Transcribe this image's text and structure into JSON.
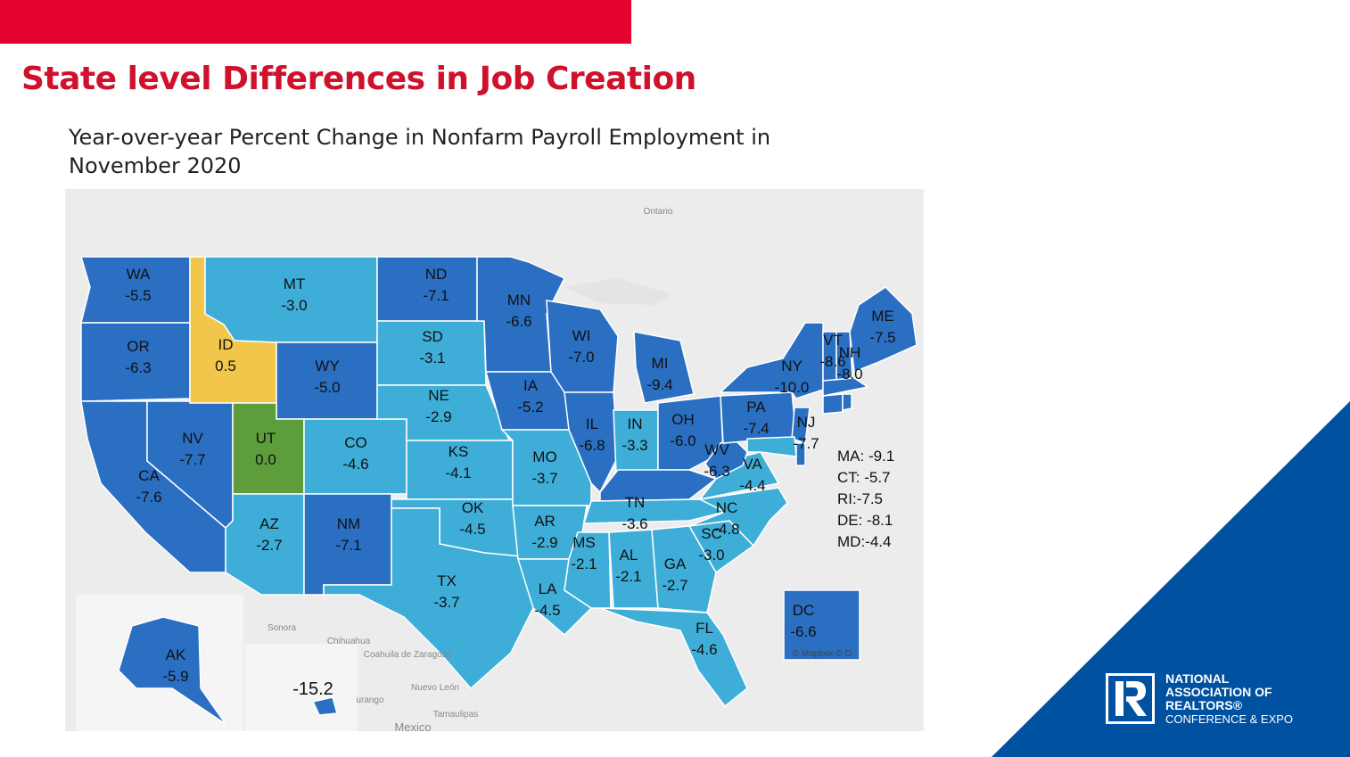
{
  "slide": {
    "title": "State level Differences in Job Creation",
    "subtitle": "Year-over-year Percent Change in Nonfarm Payroll Employment in November 2020"
  },
  "colors": {
    "accent_red": "#e4032e",
    "title_red": "#d0112b",
    "nar_blue": "#0051a0",
    "very_negative": "#2a6fc2",
    "moderately_negative": "#3eaed8",
    "slightly_positive": "#f2c64b",
    "zero": "#5e9d3b"
  },
  "map": {
    "states": [
      {
        "code": "WA",
        "value": "-5.5"
      },
      {
        "code": "OR",
        "value": "-6.3"
      },
      {
        "code": "CA",
        "value": "-7.6"
      },
      {
        "code": "NV",
        "value": "-7.7"
      },
      {
        "code": "ID",
        "value": "0.5"
      },
      {
        "code": "MT",
        "value": "-3.0"
      },
      {
        "code": "WY",
        "value": "-5.0"
      },
      {
        "code": "UT",
        "value": "0.0"
      },
      {
        "code": "CO",
        "value": "-4.6"
      },
      {
        "code": "AZ",
        "value": "-2.7"
      },
      {
        "code": "NM",
        "value": "-7.1"
      },
      {
        "code": "ND",
        "value": "-7.1"
      },
      {
        "code": "SD",
        "value": "-3.1"
      },
      {
        "code": "NE",
        "value": "-2.9"
      },
      {
        "code": "KS",
        "value": "-4.1"
      },
      {
        "code": "OK",
        "value": "-4.5"
      },
      {
        "code": "TX",
        "value": "-3.7"
      },
      {
        "code": "MN",
        "value": "-6.6"
      },
      {
        "code": "IA",
        "value": "-5.2"
      },
      {
        "code": "MO",
        "value": "-3.7"
      },
      {
        "code": "AR",
        "value": "-2.9"
      },
      {
        "code": "LA",
        "value": "-4.5"
      },
      {
        "code": "WI",
        "value": "-7.0"
      },
      {
        "code": "IL",
        "value": "-6.8"
      },
      {
        "code": "MI",
        "value": "-9.4"
      },
      {
        "code": "IN",
        "value": "-3.3"
      },
      {
        "code": "OH",
        "value": "-6.0"
      },
      {
        "code": "KY",
        "value": ""
      },
      {
        "code": "TN",
        "value": "-3.6"
      },
      {
        "code": "MS",
        "value": "-2.1"
      },
      {
        "code": "AL",
        "value": "-2.1"
      },
      {
        "code": "GA",
        "value": "-2.7"
      },
      {
        "code": "FL",
        "value": "-4.6"
      },
      {
        "code": "SC",
        "value": "-3.0"
      },
      {
        "code": "NC",
        "value": "-4.8"
      },
      {
        "code": "VA",
        "value": "-4.4"
      },
      {
        "code": "WV",
        "value": "-6.3"
      },
      {
        "code": "PA",
        "value": "-7.4"
      },
      {
        "code": "NY",
        "value": "-10.0"
      },
      {
        "code": "NJ",
        "value": "-7.7"
      },
      {
        "code": "VT",
        "value": "-8.6"
      },
      {
        "code": "NH",
        "value": "-8.0"
      },
      {
        "code": "ME",
        "value": "-7.5"
      },
      {
        "code": "AK",
        "value": "-5.9"
      },
      {
        "code": "HI",
        "value": "-15.2"
      },
      {
        "code": "DC",
        "value": "-6.6"
      }
    ],
    "small_states": [
      "MA: -9.1",
      "CT: -5.7",
      "RI:-7.5",
      "DE: -8.1",
      "MD:-4.4"
    ],
    "geo_labels": {
      "ontario": "Ontario",
      "sonora": "Sonora",
      "chihuahua": "Chihuahua",
      "coahuila": "Coahuila de Zaragoza",
      "nuevo_leon": "Nuevo León",
      "tamaulipas": "Tamaulipas",
      "durango": "urango",
      "mexico": "Mexico",
      "attribution": "© Mapbox © O"
    }
  },
  "logo": {
    "line1": "NATIONAL",
    "line2": "ASSOCIATION OF",
    "line3": "REALTORS®",
    "line4": "CONFERENCE & EXPO"
  }
}
